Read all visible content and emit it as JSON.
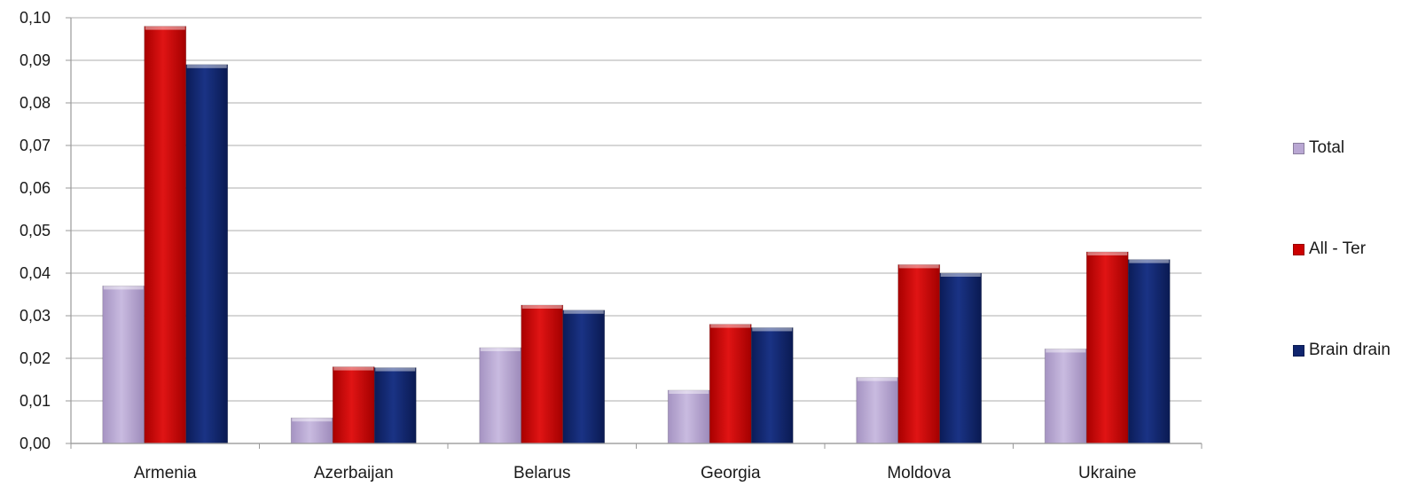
{
  "chart_data": {
    "type": "bar",
    "title": "",
    "xlabel": "",
    "ylabel": "",
    "categories": [
      "Armenia",
      "Azerbaijan",
      "Belarus",
      "Georgia",
      "Moldova",
      "Ukraine"
    ],
    "series": [
      {
        "name": "Total",
        "color": "#b9a7d3",
        "values": [
          0.037,
          0.006,
          0.0225,
          0.0125,
          0.0155,
          0.0222
        ]
      },
      {
        "name": "All - Ter",
        "color": "#cc0000",
        "values": [
          0.098,
          0.018,
          0.0325,
          0.028,
          0.042,
          0.045
        ]
      },
      {
        "name": "Brain drain",
        "color": "#10256e",
        "values": [
          0.089,
          0.0178,
          0.0313,
          0.0272,
          0.04,
          0.0432
        ]
      }
    ],
    "ylim": [
      0,
      0.1
    ],
    "yticks": [
      "0,00",
      "0,01",
      "0,02",
      "0,03",
      "0,04",
      "0,05",
      "0,06",
      "0,07",
      "0,08",
      "0,09",
      "0,10"
    ],
    "grid": true,
    "legend_position": "right"
  }
}
